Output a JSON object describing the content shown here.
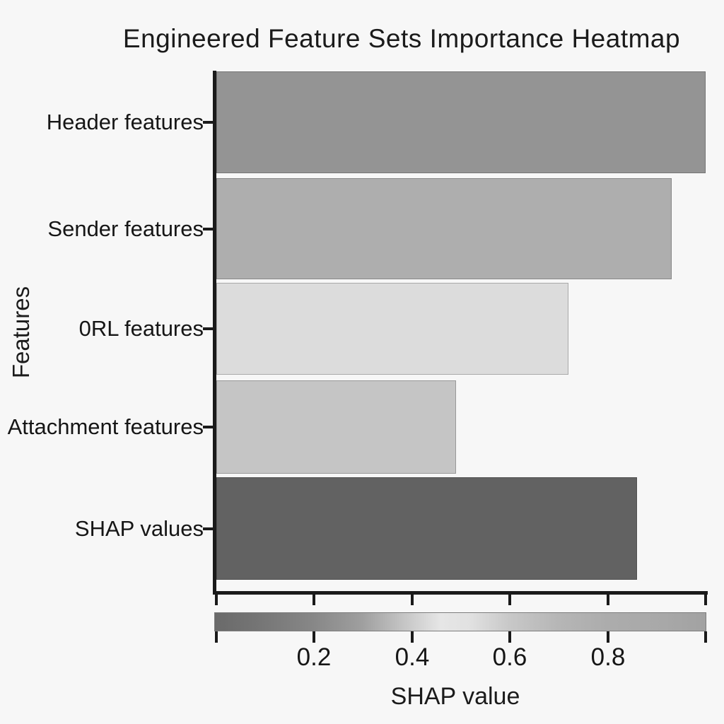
{
  "title": "Engineered Feature Sets Importance Heatmap",
  "chart_data": {
    "type": "bar",
    "orientation": "horizontal",
    "title": "Engineered Feature Sets Importance Heatmap",
    "xlabel": "SHAP value",
    "ylabel": "Features",
    "categories": [
      "Header features",
      "Sender features",
      "0RL features",
      "Attachment features",
      "SHAP values"
    ],
    "values": [
      1.0,
      0.93,
      0.72,
      0.49,
      0.86
    ],
    "bar_colors": [
      "#949494",
      "#aeaeae",
      "#dcdcdc",
      "#c5c5c5",
      "#626262"
    ],
    "xlim": [
      0,
      1.0
    ],
    "x_tick_values": [
      0.2,
      0.4,
      0.6,
      0.8
    ],
    "x_tick_labels": [
      "0.2",
      "0.4",
      "0.6",
      "0.8"
    ],
    "x_edge_ticks": [
      0.0,
      1.0
    ],
    "grid": false,
    "legend": "none",
    "colorbar": {
      "position": "bottom",
      "gradient_stops": [
        {
          "pos": 0.0,
          "color": "#6a6a6a"
        },
        {
          "pos": 0.08,
          "color": "#747474"
        },
        {
          "pos": 0.2,
          "color": "#878787"
        },
        {
          "pos": 0.3,
          "color": "#9f9f9f"
        },
        {
          "pos": 0.38,
          "color": "#c3c3c3"
        },
        {
          "pos": 0.46,
          "color": "#e6e6e6"
        },
        {
          "pos": 0.52,
          "color": "#e1e1e1"
        },
        {
          "pos": 0.6,
          "color": "#c8c8c8"
        },
        {
          "pos": 0.7,
          "color": "#b6b6b6"
        },
        {
          "pos": 0.8,
          "color": "#acacac"
        },
        {
          "pos": 0.9,
          "color": "#a9a9a9"
        },
        {
          "pos": 1.0,
          "color": "#a2a2a2"
        }
      ]
    },
    "colors": {
      "background": "#f7f7f7",
      "spine": "#1a1a1a",
      "text": "#1b1b1b"
    }
  }
}
